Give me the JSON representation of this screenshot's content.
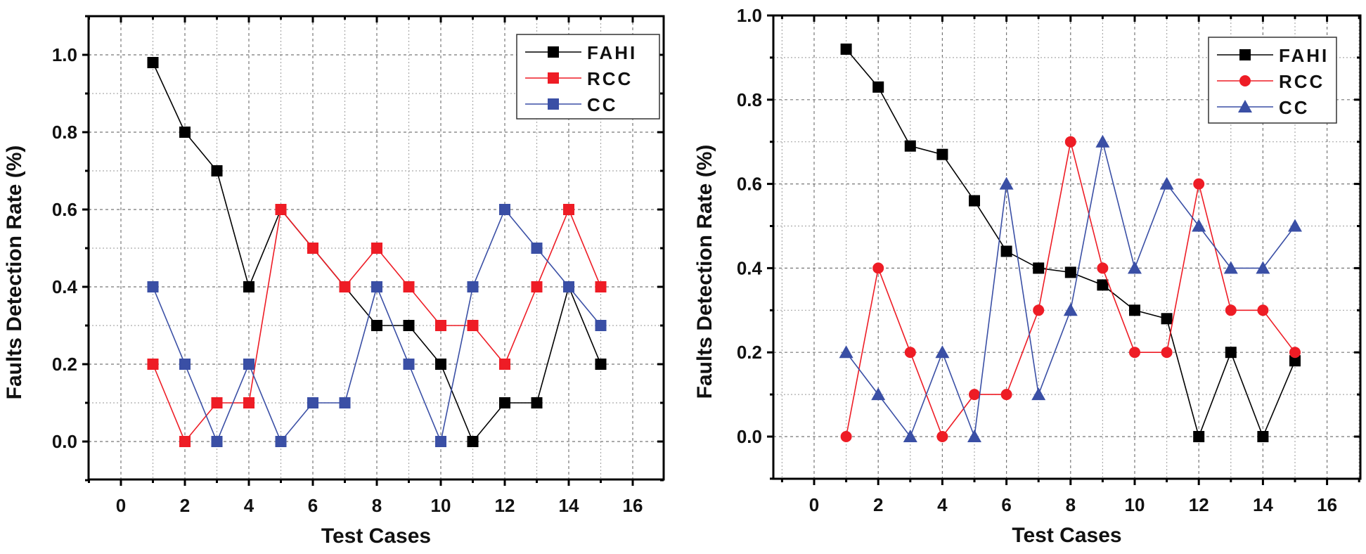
{
  "chart_data": [
    {
      "type": "line",
      "xlabel": "Test Cases",
      "ylabel": "Faults Detection Rate (%)",
      "xlim": [
        -1,
        17
      ],
      "ylim": [
        -0.1,
        1.1
      ],
      "xticks": [
        "0",
        "2",
        "4",
        "6",
        "8",
        "10",
        "12",
        "14",
        "16"
      ],
      "yticks": [
        "0.0",
        "0.2",
        "0.4",
        "0.6",
        "0.8",
        "1.0"
      ],
      "grid": true,
      "legend_position": "top-right",
      "x": [
        1,
        2,
        3,
        4,
        5,
        6,
        7,
        8,
        9,
        10,
        11,
        12,
        13,
        14,
        15
      ],
      "series": [
        {
          "name": "FAHI",
          "color": "#000000",
          "marker": "square",
          "values": [
            0.98,
            0.8,
            0.7,
            0.4,
            0.6,
            0.5,
            0.4,
            0.3,
            0.3,
            0.2,
            0.0,
            0.1,
            0.1,
            0.4,
            0.2
          ]
        },
        {
          "name": "RCC",
          "color": "#ee1c25",
          "marker": "square",
          "values": [
            0.2,
            0.0,
            0.1,
            0.1,
            0.6,
            0.5,
            0.4,
            0.5,
            0.4,
            0.3,
            0.3,
            0.2,
            0.4,
            0.6,
            0.4
          ]
        },
        {
          "name": "CC",
          "color": "#3a4fa5",
          "marker": "square",
          "values": [
            0.4,
            0.2,
            0.0,
            0.2,
            0.0,
            0.1,
            0.1,
            0.4,
            0.2,
            0.0,
            0.4,
            0.6,
            0.5,
            0.4,
            0.3
          ]
        }
      ]
    },
    {
      "type": "line",
      "xlabel": "Test Cases",
      "ylabel": "Faults Detection Rate (%)",
      "xlim": [
        -1,
        17
      ],
      "ylim": [
        -0.1,
        1.0
      ],
      "xticks": [
        "0",
        "2",
        "4",
        "6",
        "8",
        "10",
        "12",
        "14",
        "16"
      ],
      "yticks": [
        "0.0",
        "0.2",
        "0.4",
        "0.6",
        "0.8",
        "1.0"
      ],
      "grid": true,
      "legend_position": "top-right",
      "x": [
        1,
        2,
        3,
        4,
        5,
        6,
        7,
        8,
        9,
        10,
        11,
        12,
        13,
        14,
        15
      ],
      "series": [
        {
          "name": "FAHI",
          "color": "#000000",
          "marker": "square",
          "values": [
            0.92,
            0.83,
            0.69,
            0.67,
            0.56,
            0.44,
            0.4,
            0.39,
            0.36,
            0.3,
            0.28,
            0.0,
            0.2,
            0.0,
            0.18
          ]
        },
        {
          "name": "RCC",
          "color": "#ee1c25",
          "marker": "circle",
          "values": [
            0.0,
            0.4,
            0.2,
            0.0,
            0.1,
            0.1,
            0.3,
            0.7,
            0.4,
            0.2,
            0.2,
            0.6,
            0.3,
            0.3,
            0.2
          ]
        },
        {
          "name": "CC",
          "color": "#3a4fa5",
          "marker": "triangle",
          "values": [
            0.2,
            0.1,
            0.0,
            0.2,
            0.0,
            0.6,
            0.1,
            0.3,
            0.7,
            0.4,
            0.6,
            0.5,
            0.4,
            0.4,
            0.5
          ]
        }
      ]
    }
  ]
}
